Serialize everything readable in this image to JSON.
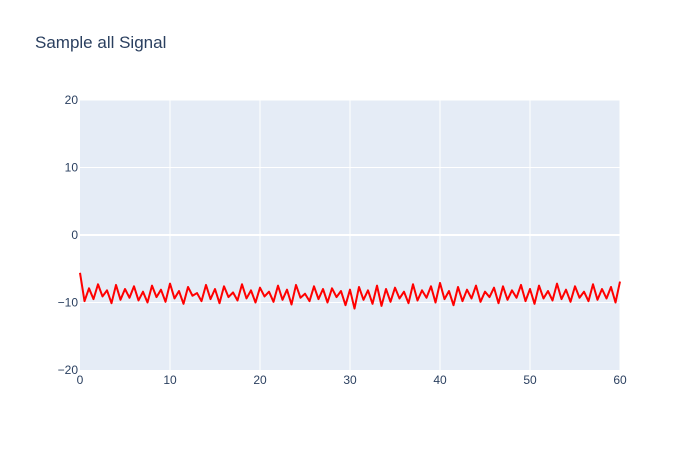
{
  "chart_data": {
    "type": "line",
    "title": "Sample all Signal",
    "xlabel": "",
    "ylabel": "",
    "xlim": [
      0,
      60
    ],
    "ylim": [
      -20,
      20
    ],
    "x_ticks": [
      0,
      10,
      20,
      30,
      40,
      50,
      60
    ],
    "y_ticks": [
      -20,
      -10,
      0,
      10,
      20
    ],
    "x_tick_labels": [
      "0",
      "10",
      "20",
      "30",
      "40",
      "50",
      "60"
    ],
    "y_tick_labels": [
      "−20",
      "−10",
      "0",
      "10",
      "20"
    ],
    "grid": true,
    "legend": false,
    "series": [
      {
        "color": "#ff0000",
        "description_of_values": "noisy signal fluctuating around -8.5 between about -10.5 and -6.5, sampled densely over 0 to 60",
        "x": [
          0,
          0.5,
          1,
          1.5,
          2,
          2.5,
          3,
          3.5,
          4,
          4.5,
          5,
          5.5,
          6,
          6.5,
          7,
          7.5,
          8,
          8.5,
          9,
          9.5,
          10,
          10.5,
          11,
          11.5,
          12,
          12.5,
          13,
          13.5,
          14,
          14.5,
          15,
          15.5,
          16,
          16.5,
          17,
          17.5,
          18,
          18.5,
          19,
          19.5,
          20,
          20.5,
          21,
          21.5,
          22,
          22.5,
          23,
          23.5,
          24,
          24.5,
          25,
          25.5,
          26,
          26.5,
          27,
          27.5,
          28,
          28.5,
          29,
          29.5,
          30,
          30.5,
          31,
          31.5,
          32,
          32.5,
          33,
          33.5,
          34,
          34.5,
          35,
          35.5,
          36,
          36.5,
          37,
          37.5,
          38,
          38.5,
          39,
          39.5,
          40,
          40.5,
          41,
          41.5,
          42,
          42.5,
          43,
          43.5,
          44,
          44.5,
          45,
          45.5,
          46,
          46.5,
          47,
          47.5,
          48,
          48.5,
          49,
          49.5,
          50,
          50.5,
          51,
          51.5,
          52,
          52.5,
          53,
          53.5,
          54,
          54.5,
          55,
          55.5,
          56,
          56.5,
          57,
          57.5,
          58,
          58.5,
          59,
          59.5,
          60
        ],
        "y": [
          -5.6,
          -9.8,
          -7.9,
          -9.5,
          -7.3,
          -9.1,
          -8.2,
          -10.1,
          -7.4,
          -9.6,
          -8.0,
          -9.3,
          -7.6,
          -9.7,
          -8.4,
          -10.0,
          -7.5,
          -9.2,
          -8.1,
          -9.9,
          -7.2,
          -9.4,
          -8.3,
          -10.2,
          -7.7,
          -9.0,
          -8.6,
          -9.8,
          -7.4,
          -9.5,
          -8.0,
          -10.1,
          -7.6,
          -9.2,
          -8.5,
          -9.7,
          -7.3,
          -9.4,
          -8.2,
          -10.0,
          -7.8,
          -9.1,
          -8.4,
          -9.9,
          -7.5,
          -9.6,
          -8.1,
          -10.3,
          -7.4,
          -9.3,
          -8.7,
          -9.8,
          -7.6,
          -9.5,
          -8.0,
          -10.0,
          -7.9,
          -9.2,
          -8.3,
          -10.4,
          -8.1,
          -10.9,
          -7.7,
          -9.6,
          -8.2,
          -10.2,
          -7.5,
          -10.5,
          -8.0,
          -9.9,
          -7.8,
          -9.4,
          -8.4,
          -10.1,
          -7.3,
          -9.7,
          -8.2,
          -9.3,
          -7.6,
          -10.0,
          -7.1,
          -9.5,
          -8.3,
          -10.4,
          -7.7,
          -9.8,
          -8.1,
          -9.4,
          -7.5,
          -9.9,
          -8.4,
          -9.2,
          -7.8,
          -10.1,
          -7.6,
          -9.6,
          -8.2,
          -9.3,
          -7.4,
          -9.8,
          -8.0,
          -10.2,
          -7.5,
          -9.4,
          -8.3,
          -9.7,
          -7.2,
          -9.5,
          -8.1,
          -9.9,
          -7.6,
          -9.3,
          -8.4,
          -9.8,
          -7.3,
          -9.6,
          -8.0,
          -9.4,
          -7.7,
          -10.0,
          -6.9
        ]
      }
    ]
  }
}
